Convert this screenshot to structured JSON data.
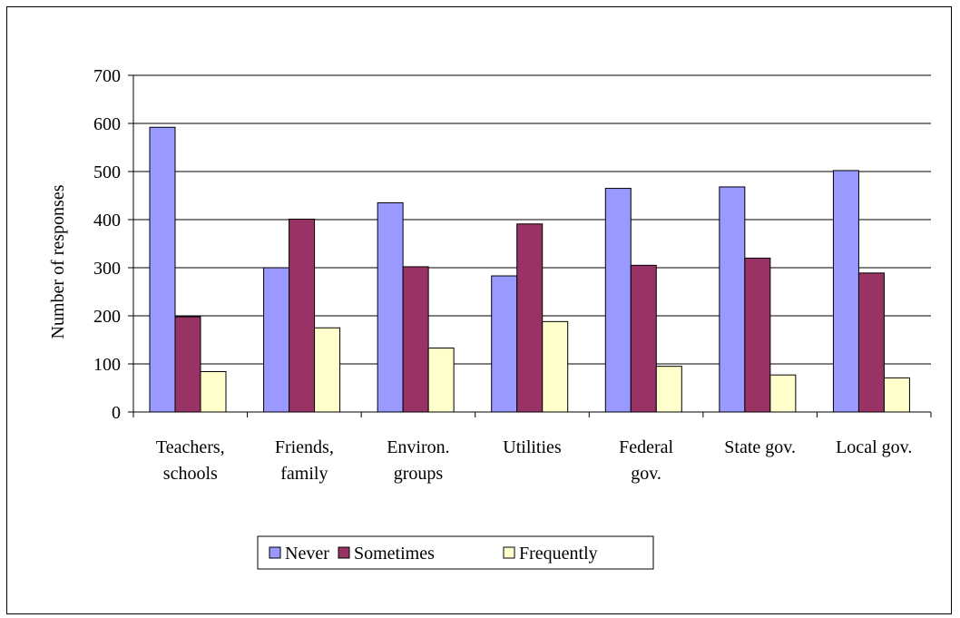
{
  "chart_data": {
    "type": "bar",
    "title": "",
    "xlabel": "",
    "ylabel": "Number of responses",
    "ylim": [
      0,
      700
    ],
    "yticks": [
      0,
      100,
      200,
      300,
      400,
      500,
      600,
      700
    ],
    "grid": true,
    "legend_position": "bottom",
    "categories": [
      [
        "Teachers,",
        "schools"
      ],
      [
        "Friends,",
        "family"
      ],
      [
        "Environ.",
        "groups"
      ],
      [
        "Utilities"
      ],
      [
        "Federal",
        "gov."
      ],
      [
        "State gov."
      ],
      [
        "Local gov."
      ]
    ],
    "series": [
      {
        "name": "Never",
        "color": "#9999ff",
        "values": [
          592,
          300,
          435,
          283,
          465,
          468,
          502
        ]
      },
      {
        "name": "Sometimes",
        "color": "#993366",
        "values": [
          198,
          401,
          302,
          391,
          305,
          320,
          289
        ]
      },
      {
        "name": "Frequently",
        "color": "#ffffcc",
        "values": [
          84,
          175,
          133,
          188,
          95,
          77,
          71
        ]
      }
    ]
  }
}
